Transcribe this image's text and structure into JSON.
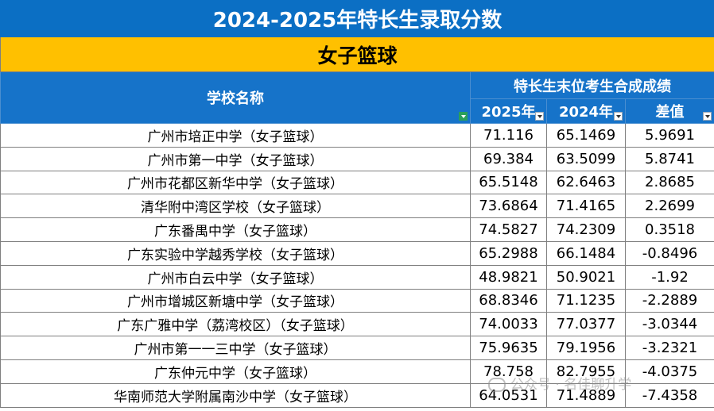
{
  "title": "2024-2025年特长生录取分数",
  "subtitle": "女子篮球",
  "header": {
    "school_col": "学校名称",
    "group": "特长生末位考生合成成绩",
    "col_2025": "2025年",
    "col_2024": "2024年",
    "col_diff": "差值"
  },
  "rows": [
    {
      "school": "广州市培正中学（女子篮球）",
      "y2025": "71.116",
      "y2024": "65.1469",
      "diff": "5.9691"
    },
    {
      "school": "广州市第一中学（女子篮球）",
      "y2025": "69.384",
      "y2024": "63.5099",
      "diff": "5.8741"
    },
    {
      "school": "广州市花都区新华中学（女子篮球）",
      "y2025": "65.5148",
      "y2024": "62.6463",
      "diff": "2.8685"
    },
    {
      "school": "清华附中湾区学校（女子篮球）",
      "y2025": "73.6864",
      "y2024": "71.4165",
      "diff": "2.2699"
    },
    {
      "school": "广东番禺中学（女子篮球）",
      "y2025": "74.5827",
      "y2024": "74.2309",
      "diff": "0.3518"
    },
    {
      "school": "广东实验中学越秀学校（女子篮球）",
      "y2025": "65.2988",
      "y2024": "66.1484",
      "diff": "-0.8496"
    },
    {
      "school": "广州市白云中学（女子篮球）",
      "y2025": "48.9821",
      "y2024": "50.9021",
      "diff": "-1.92"
    },
    {
      "school": "广州市增城区新塘中学（女子篮球）",
      "y2025": "68.8346",
      "y2024": "71.1235",
      "diff": "-2.2889"
    },
    {
      "school": "广东广雅中学（荔湾校区）（女子篮球）",
      "y2025": "74.0033",
      "y2024": "77.0377",
      "diff": "-3.0344"
    },
    {
      "school": "广州市第一一三中学（女子篮球）",
      "y2025": "75.9635",
      "y2024": "79.1956",
      "diff": "-3.2321"
    },
    {
      "school": "广东仲元中学（女子篮球）",
      "y2025": "78.758",
      "y2024": "82.7955",
      "diff": "-4.0375"
    },
    {
      "school": "华南师范大学附属南沙中学（女子篮球）",
      "y2025": "64.0531",
      "y2024": "71.4889",
      "diff": "-7.4358"
    }
  ],
  "watermark": "公众号 · 名佳聊升学",
  "colors": {
    "title_bg": "#0b6fc4",
    "subtitle_bg": "#ffc000",
    "header_bg": "#1673c9"
  }
}
